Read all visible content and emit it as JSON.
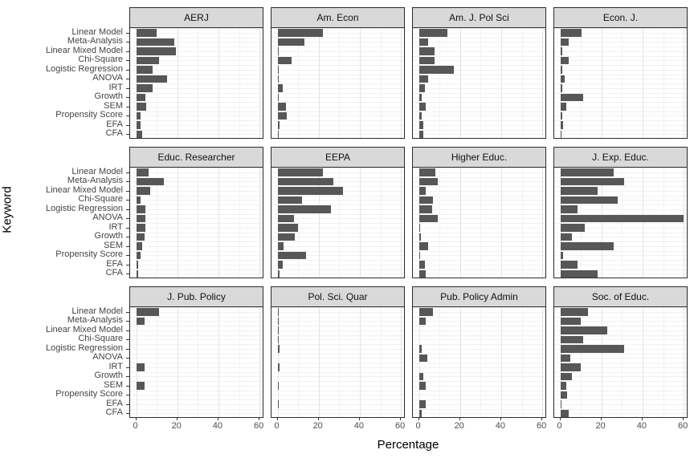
{
  "figure": {
    "xlabel": "Percentage",
    "ylabel": "Keyword"
  },
  "chart_data": {
    "type": "bar",
    "orientation": "horizontal",
    "title": "",
    "xlabel": "Percentage",
    "ylabel": "Keyword",
    "x_ticks": [
      0,
      20,
      40,
      60
    ],
    "x_minor_ticks": [
      10,
      30,
      50
    ],
    "xlim": [
      0,
      62
    ],
    "grid": true,
    "legend": null,
    "facet_layout": {
      "rows": 3,
      "cols": 4
    },
    "categories": [
      "Linear Model",
      "Meta-Analysis",
      "Linear Mixed Model",
      "Chi-Square",
      "Logistic Regression",
      "ANOVA",
      "IRT",
      "Growth",
      "SEM",
      "Propensity Score",
      "EFA",
      "CFA"
    ],
    "facets": [
      {
        "title": "AERJ",
        "values": [
          10,
          18.5,
          19.5,
          11,
          8,
          15,
          8,
          4.5,
          5,
          2,
          2,
          3
        ]
      },
      {
        "title": "Am. Econ",
        "values": [
          22,
          13,
          0.5,
          7,
          0.5,
          0.5,
          2.5,
          0.5,
          4,
          4.5,
          1,
          0.5
        ]
      },
      {
        "title": "Am. J. Pol Sci",
        "values": [
          14,
          4.5,
          7.5,
          7.5,
          17,
          4.5,
          3,
          1.5,
          3.5,
          1.5,
          2,
          2
        ]
      },
      {
        "title": "Econ. J.",
        "values": [
          10.5,
          4,
          1,
          4,
          1,
          2,
          1,
          11,
          3,
          1,
          1.5,
          0.5
        ]
      },
      {
        "title": "Educ. Researcher",
        "values": [
          6,
          13.5,
          7,
          2,
          4.5,
          4.5,
          4.5,
          4,
          3,
          2,
          1,
          1
        ]
      },
      {
        "title": "EEPA",
        "values": [
          22,
          27,
          32,
          12,
          26,
          8,
          10,
          8.5,
          3,
          14,
          2.5,
          1
        ]
      },
      {
        "title": "Higher Educ.",
        "values": [
          8,
          9,
          3.5,
          7,
          6.5,
          9,
          0.5,
          1,
          4.5,
          0.5,
          3,
          3.5
        ]
      },
      {
        "title": "J. Exp. Educ.",
        "values": [
          26,
          31,
          18,
          28,
          8.5,
          60,
          12,
          5.5,
          26,
          1.5,
          8.5,
          18
        ]
      },
      {
        "title": "J. Pub. Policy",
        "values": [
          11,
          4,
          0,
          0,
          0,
          0,
          4,
          0,
          4,
          0,
          0,
          0
        ]
      },
      {
        "title": "Pol. Sci. Quar",
        "values": [
          0.5,
          0.5,
          0.5,
          0.5,
          1,
          0,
          1,
          0,
          0.5,
          0,
          0.5,
          0
        ]
      },
      {
        "title": "Pub. Policy Admin",
        "values": [
          7,
          3.5,
          0,
          0,
          1.5,
          4,
          0,
          2,
          3.5,
          0,
          3.5,
          1.5
        ]
      },
      {
        "title": "Soc. of Educ.",
        "values": [
          13.5,
          10,
          23,
          11,
          31,
          5,
          10,
          5.5,
          3,
          3.5,
          0.5,
          4
        ]
      }
    ]
  },
  "colors": {
    "bar": "#575757",
    "strip_bg": "#D9D9D9",
    "panel_border": "#2b2b2b",
    "grid_major": "#E4E4E4",
    "grid_minor": "#F2F2F2",
    "tick_label": "#4D4D4D"
  }
}
